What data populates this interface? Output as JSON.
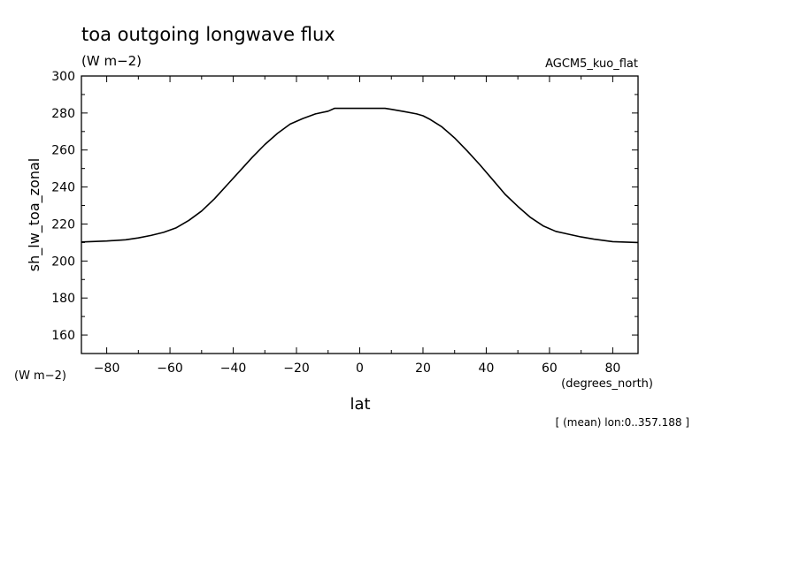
{
  "header": {
    "title": "toa outgoing longwave flux",
    "units": "(W m−2)",
    "model": "AGCM5_kuo_flat",
    "y_units": "(W m−2)",
    "x_units": "(degrees_north)",
    "footnote": "[ (mean) lon:0..357.188 ]"
  },
  "chart_data": {
    "type": "line",
    "title": "toa outgoing longwave flux",
    "xlabel": "lat",
    "ylabel": "sh_lw_toa_zonal",
    "xlim": [
      -88,
      88
    ],
    "ylim": [
      150,
      300
    ],
    "x_ticks": [
      -80,
      -60,
      -40,
      -20,
      0,
      20,
      40,
      60,
      80
    ],
    "x_tick_labels": [
      "−80",
      "−60",
      "−40",
      "−20",
      "0",
      "20",
      "40",
      "60",
      "80"
    ],
    "y_ticks": [
      160,
      180,
      200,
      220,
      240,
      260,
      280,
      300
    ],
    "y_tick_labels": [
      "160",
      "180",
      "200",
      "220",
      "240",
      "260",
      "280",
      "300"
    ],
    "grid": false,
    "series": [
      {
        "x": [
          -88,
          -80,
          -74,
          -70,
          -66,
          -62,
          -58,
          -54,
          -50,
          -46,
          -42,
          -38,
          -34,
          -30,
          -26,
          -22,
          -18,
          -14,
          -10,
          -8,
          -4,
          0,
          4,
          8,
          10,
          14,
          18,
          20,
          22,
          26,
          30,
          34,
          38,
          42,
          46,
          50,
          54,
          58,
          62,
          66,
          70,
          74,
          80,
          88
        ],
        "y": [
          210.3,
          210.8,
          211.5,
          212.5,
          213.8,
          215.5,
          218.0,
          222.0,
          227.0,
          233.5,
          241.0,
          248.5,
          256.0,
          263.0,
          269.0,
          274.0,
          277.0,
          279.5,
          281.0,
          282.5,
          282.5,
          282.5,
          282.5,
          282.5,
          282.0,
          280.8,
          279.5,
          278.5,
          276.8,
          272.5,
          266.5,
          259.5,
          252.0,
          244.0,
          236.0,
          229.5,
          223.5,
          219.0,
          216.0,
          214.5,
          213.0,
          211.8,
          210.5,
          210.0
        ]
      }
    ]
  }
}
